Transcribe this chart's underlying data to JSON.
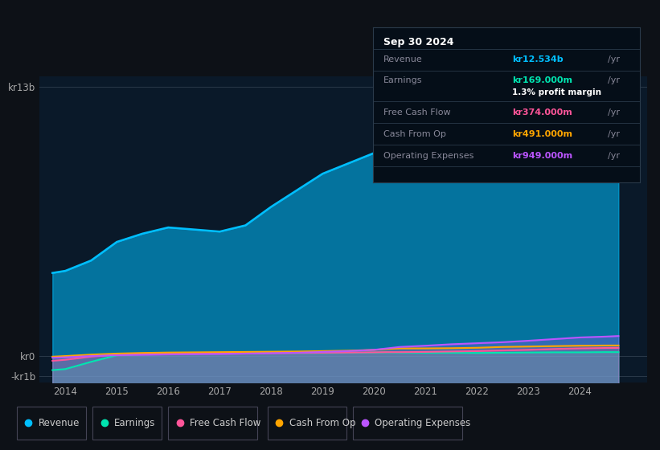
{
  "background_color": "#0d1117",
  "plot_bg_color": "#0a1929",
  "x_years": [
    2013.75,
    2014.0,
    2014.5,
    2015.0,
    2015.5,
    2016.0,
    2016.5,
    2017.0,
    2017.5,
    2018.0,
    2018.5,
    2019.0,
    2019.5,
    2020.0,
    2020.25,
    2020.5,
    2021.0,
    2021.5,
    2022.0,
    2022.5,
    2023.0,
    2023.5,
    2024.0,
    2024.5,
    2024.75
  ],
  "revenue": [
    4.0,
    4.1,
    4.6,
    5.5,
    5.9,
    6.2,
    6.1,
    6.0,
    6.3,
    7.2,
    8.0,
    8.8,
    9.3,
    9.8,
    9.85,
    9.6,
    9.0,
    8.6,
    8.5,
    9.8,
    10.5,
    11.4,
    12.0,
    12.4,
    12.534
  ],
  "earnings": [
    -0.7,
    -0.65,
    -0.3,
    0.02,
    0.08,
    0.12,
    0.13,
    0.13,
    0.14,
    0.14,
    0.13,
    0.13,
    0.14,
    0.15,
    0.16,
    0.15,
    0.14,
    0.14,
    0.13,
    0.14,
    0.15,
    0.16,
    0.16,
    0.17,
    0.169
  ],
  "free_cash_flow": [
    -0.25,
    -0.2,
    -0.05,
    0.05,
    0.08,
    0.1,
    0.1,
    0.1,
    0.1,
    0.12,
    0.13,
    0.14,
    0.15,
    0.16,
    0.17,
    0.17,
    0.18,
    0.2,
    0.22,
    0.25,
    0.28,
    0.32,
    0.35,
    0.37,
    0.374
  ],
  "cash_from_op": [
    -0.05,
    -0.02,
    0.05,
    0.1,
    0.13,
    0.15,
    0.16,
    0.17,
    0.18,
    0.19,
    0.2,
    0.22,
    0.24,
    0.28,
    0.32,
    0.35,
    0.35,
    0.36,
    0.38,
    0.42,
    0.44,
    0.46,
    0.48,
    0.49,
    0.491
  ],
  "operating_expenses": [
    -0.1,
    -0.08,
    -0.02,
    0.02,
    0.04,
    0.06,
    0.07,
    0.08,
    0.1,
    0.12,
    0.14,
    0.18,
    0.22,
    0.28,
    0.35,
    0.42,
    0.48,
    0.55,
    0.6,
    0.65,
    0.72,
    0.8,
    0.88,
    0.92,
    0.949
  ],
  "revenue_color": "#00bfff",
  "earnings_color": "#00e5b0",
  "free_cash_flow_color": "#ff5599",
  "cash_from_op_color": "#ffa500",
  "operating_expenses_color": "#bb55ff",
  "ylim_min": -1.3,
  "ylim_max": 13.5,
  "xlim_min": 2013.5,
  "xlim_max": 2025.3,
  "ytick_values": [
    -1,
    0,
    13
  ],
  "ytick_labels": [
    "-kr1b",
    "kr0",
    "kr13b"
  ],
  "xtick_values": [
    2014,
    2015,
    2016,
    2017,
    2018,
    2019,
    2020,
    2021,
    2022,
    2023,
    2024
  ],
  "tooltip_title": "Sep 30 2024",
  "tooltip_rows": [
    {
      "label": "Revenue",
      "value": "kr12.534b",
      "color": "#00bfff",
      "extra": null
    },
    {
      "label": "Earnings",
      "value": "kr169.000m",
      "color": "#00e5b0",
      "extra": "1.3% profit margin"
    },
    {
      "label": "Free Cash Flow",
      "value": "kr374.000m",
      "color": "#ff5599",
      "extra": null
    },
    {
      "label": "Cash From Op",
      "value": "kr491.000m",
      "color": "#ffa500",
      "extra": null
    },
    {
      "label": "Operating Expenses",
      "value": "kr949.000m",
      "color": "#bb55ff",
      "extra": null
    }
  ],
  "legend_labels": [
    "Revenue",
    "Earnings",
    "Free Cash Flow",
    "Cash From Op",
    "Operating Expenses"
  ],
  "legend_colors": [
    "#00bfff",
    "#00e5b0",
    "#ff5599",
    "#ffa500",
    "#bb55ff"
  ]
}
